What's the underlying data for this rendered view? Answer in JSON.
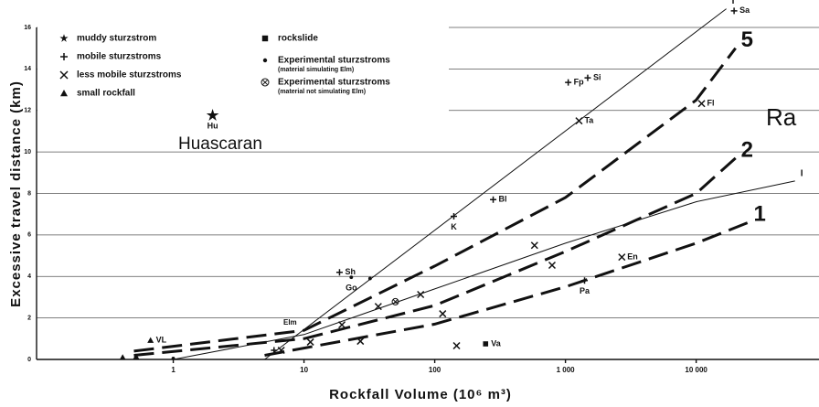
{
  "chart_data": {
    "type": "scatter",
    "x_label": "Rockfall Volume (10⁶ m³)",
    "y_label": "Excessive travel distance (km)",
    "xscale": "log",
    "xlim": [
      0.09,
      87000
    ],
    "xticks": [
      1,
      10,
      100,
      {
        "value": 1000,
        "label": "1 000"
      },
      {
        "value": 10000,
        "label": "10 000"
      }
    ],
    "ylim": [
      0,
      16
    ],
    "yticks": [
      0,
      2,
      4,
      6,
      8,
      10,
      12,
      14,
      16
    ],
    "grid": true,
    "legend": [
      {
        "marker": "star",
        "label": "muddy sturzstrom"
      },
      {
        "marker": "plus",
        "label": "mobile sturzstroms"
      },
      {
        "marker": "cross",
        "label": "less mobile sturzstroms"
      },
      {
        "marker": "triangle",
        "label": "small rockfall"
      },
      {
        "marker": "square",
        "label": "rockslide"
      },
      {
        "marker": "dot",
        "label": "Experimental sturzstroms",
        "note": "(material simulating Elm)"
      },
      {
        "marker": "otimes",
        "label": "Experimental sturzstroms",
        "note": "(material not simulating Elm)"
      }
    ],
    "points": [
      {
        "marker": "star",
        "label": "Hu",
        "x": 2.0,
        "y": 11.76
      },
      {
        "marker": "plus",
        "label": "Sa",
        "x": 19500,
        "y": 16.8
      },
      {
        "marker": "plus",
        "label": "Fp",
        "x": 1050,
        "y": 13.35
      },
      {
        "marker": "plus",
        "label": "Si",
        "x": 1480,
        "y": 13.57
      },
      {
        "marker": "cross",
        "label": "Ta",
        "x": 1270,
        "y": 11.5
      },
      {
        "marker": "cross",
        "label": "Fl",
        "x": 11000,
        "y": 12.33
      },
      {
        "marker": "plus",
        "label": "Bl",
        "x": 280,
        "y": 7.7
      },
      {
        "marker": "plus",
        "label": "K",
        "x": 140,
        "y": 6.9
      },
      {
        "marker": "plus",
        "label": "Sh",
        "x": 18.7,
        "y": 4.2
      },
      {
        "marker": "dot",
        "label": "Go",
        "x": 23,
        "y": 3.96
      },
      {
        "marker": "triangle",
        "label": "VL",
        "x": 0.67,
        "y": 0.92
      },
      {
        "marker": "square",
        "label": "Va",
        "x": 245,
        "y": 0.75
      },
      {
        "marker": "cross",
        "label": "En",
        "x": 2700,
        "y": 4.93
      },
      {
        "marker": "plus",
        "label": "Pa",
        "x": 1400,
        "y": 3.8
      },
      {
        "marker": "cross",
        "x": 11.2,
        "y": 0.84
      },
      {
        "marker": "cross",
        "x": 27,
        "y": 0.88
      },
      {
        "marker": "cross",
        "x": 37,
        "y": 2.55
      },
      {
        "marker": "cross",
        "x": 78,
        "y": 3.13
      },
      {
        "marker": "cross",
        "x": 147,
        "y": 0.66
      },
      {
        "marker": "cross",
        "x": 580,
        "y": 5.5
      },
      {
        "marker": "cross",
        "x": 790,
        "y": 4.54
      },
      {
        "marker": "cross",
        "x": 115,
        "y": 2.2
      },
      {
        "marker": "cross",
        "x": 19.5,
        "y": 1.67
      },
      {
        "marker": "cross",
        "x": 6.7,
        "y": 0.44
      },
      {
        "marker": "dot",
        "x": 32,
        "y": 3.9
      },
      {
        "marker": "otimes",
        "x": 50,
        "y": 2.78
      },
      {
        "marker": "triangle",
        "x": 0.52,
        "y": 0.13
      },
      {
        "marker": "triangle",
        "x": 0.41,
        "y": 0.1
      },
      {
        "marker": "dot",
        "x": 1,
        "y": 0.05
      },
      {
        "marker": "plus",
        "x": 5.9,
        "y": 0.44
      }
    ],
    "lines": [
      {
        "label": "I",
        "dashed": false,
        "x": [
          5,
          17000
        ],
        "values": [
          0,
          16.9
        ]
      },
      {
        "label": "I",
        "dashed": false,
        "x": [
          1,
          10,
          100,
          1000,
          10000,
          57000
        ],
        "values": [
          0,
          1.2,
          3.4,
          5.6,
          7.6,
          8.6
        ]
      },
      {
        "label": "5",
        "dashed": true,
        "x": [
          0.5,
          10,
          100,
          1000,
          10000,
          20000
        ],
        "values": [
          0.4,
          1.4,
          4.5,
          7.8,
          12.5,
          15
        ]
      },
      {
        "label": "2",
        "dashed": true,
        "x": [
          0.5,
          10,
          100,
          1000,
          10000,
          20000
        ],
        "values": [
          0.2,
          1.0,
          2.6,
          5.2,
          8,
          9.7
        ]
      },
      {
        "label": "1",
        "dashed": true,
        "x": [
          5,
          100,
          1000,
          10000,
          25000
        ],
        "values": [
          0.2,
          1.7,
          3.5,
          5.6,
          6.6
        ]
      }
    ],
    "annotations": [
      "Huascaran",
      "Ra",
      "Elm"
    ]
  }
}
